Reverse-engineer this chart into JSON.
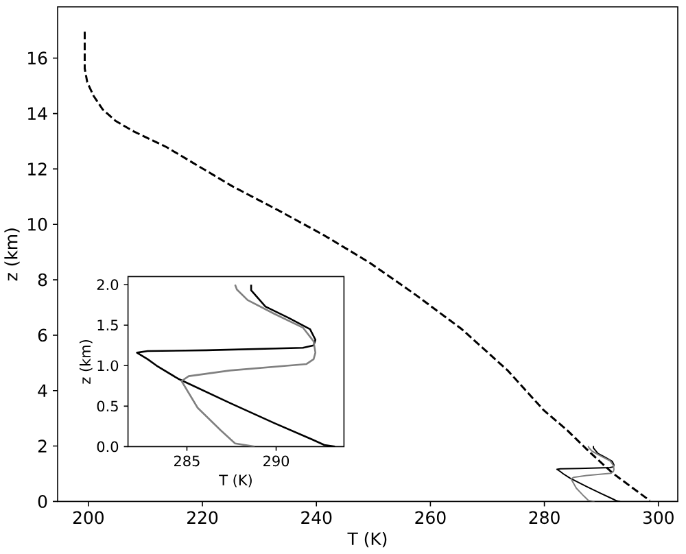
{
  "chart_data": [
    {
      "type": "line",
      "xlabel": "T (K)",
      "ylabel": "z (km)",
      "xlim": [
        194.6,
        303.4
      ],
      "ylim": [
        0,
        17.85
      ],
      "xticks": [
        200,
        220,
        240,
        260,
        280,
        300
      ],
      "yticks": [
        0,
        2,
        4,
        6,
        8,
        10,
        12,
        14,
        16
      ],
      "series": [
        {
          "color": "#000000",
          "line_style": "dashed",
          "x": [
            199.35,
            199.35,
            199.8,
            200.9,
            202.5,
            204.8,
            208.0,
            213.7,
            225.3,
            233.3,
            241.4,
            249.4,
            257.4,
            265.5,
            273.5,
            279.9,
            283.9,
            288.0,
            292.0,
            298.5
          ],
          "values": [
            16.95,
            15.63,
            15.13,
            14.64,
            14.15,
            13.73,
            13.35,
            12.79,
            11.37,
            10.51,
            9.6,
            8.61,
            7.46,
            6.22,
            4.74,
            3.29,
            2.59,
            1.77,
            1.02,
            0.03
          ]
        },
        {
          "color": "#000000",
          "line_style": "solid",
          "x": [
            288.6,
            288.6,
            289.4,
            290.7,
            291.9,
            292.2,
            292.1,
            291.5,
            286.1,
            282.8,
            282.2,
            282.8,
            283.3,
            284.5,
            287.4,
            289.9,
            292.0,
            292.7,
            293.3
          ],
          "values": [
            2.0,
            1.93,
            1.73,
            1.59,
            1.45,
            1.32,
            1.25,
            1.22,
            1.19,
            1.18,
            1.16,
            1.08,
            1.0,
            0.84,
            0.54,
            0.29,
            0.09,
            0.02,
            0.0
          ]
        },
        {
          "color": "#808080",
          "line_style": "solid",
          "x": [
            287.7,
            287.8,
            288.4,
            289.9,
            291.5,
            292.1,
            292.2,
            292.1,
            291.7,
            287.4,
            285.1,
            284.7,
            285.6,
            286.9,
            287.7,
            288.8
          ],
          "values": [
            2.0,
            1.94,
            1.81,
            1.64,
            1.47,
            1.3,
            1.16,
            1.08,
            1.02,
            0.94,
            0.87,
            0.81,
            0.48,
            0.2,
            0.04,
            0.0
          ]
        }
      ]
    },
    {
      "type": "line",
      "xlabel": "T (K)",
      "ylabel": "z (km)",
      "xlim": [
        281.7,
        293.8
      ],
      "ylim": [
        0,
        2.1
      ],
      "xticks": [
        285,
        290
      ],
      "yticks": [
        {
          "value": 0,
          "label": "0.0"
        },
        0.5,
        {
          "value": 1,
          "label": "1.0"
        },
        1.5,
        {
          "value": 2,
          "label": "2.0"
        }
      ],
      "series": [
        {
          "color": "#000000",
          "line_style": "solid",
          "x": [
            288.6,
            288.6,
            289.4,
            290.7,
            291.9,
            292.2,
            292.1,
            291.5,
            286.1,
            282.8,
            282.2,
            282.8,
            283.3,
            284.5,
            287.4,
            289.9,
            292.0,
            292.7,
            293.3
          ],
          "values": [
            2.0,
            1.93,
            1.73,
            1.59,
            1.45,
            1.32,
            1.25,
            1.22,
            1.19,
            1.18,
            1.16,
            1.08,
            1.0,
            0.84,
            0.54,
            0.29,
            0.09,
            0.02,
            0.0
          ]
        },
        {
          "color": "#808080",
          "line_style": "solid",
          "x": [
            287.7,
            287.8,
            288.4,
            289.9,
            291.5,
            292.1,
            292.2,
            292.1,
            291.7,
            287.4,
            285.1,
            284.7,
            285.6,
            286.9,
            287.7,
            288.8
          ],
          "values": [
            2.0,
            1.94,
            1.81,
            1.64,
            1.47,
            1.3,
            1.16,
            1.08,
            1.02,
            0.94,
            0.87,
            0.81,
            0.48,
            0.2,
            0.04,
            0.0
          ]
        }
      ]
    }
  ]
}
